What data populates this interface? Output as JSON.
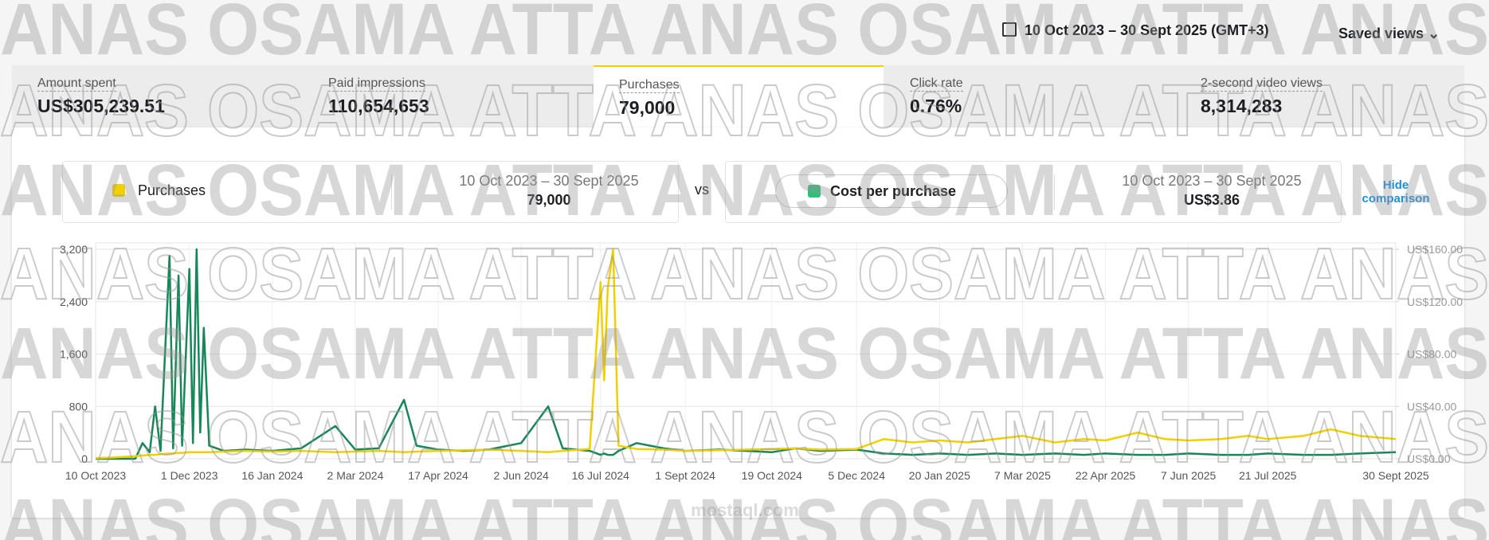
{
  "watermark": "ANAS OSAMA ATTA ANAS OSAMA ATTA ANAS",
  "site_watermark": "mostaql.com",
  "header": {
    "date_range": "10 Oct 2023 – 30 Sept 2025 (GMT+3)",
    "saved_views": "Saved views"
  },
  "metrics": [
    {
      "label": "Amount spent",
      "value": "US$305,239.51"
    },
    {
      "label": "Paid impressions",
      "value": "110,654,653"
    },
    {
      "label": "Purchases",
      "value": "79,000"
    },
    {
      "label": "Click rate",
      "value": "0.76%"
    },
    {
      "label": "2-second video views",
      "value": "8,314,283"
    }
  ],
  "comparison": {
    "left": {
      "metric": "Purchases",
      "period": "10 Oct 2023 – 30 Sept 2025",
      "total": "79,000"
    },
    "vs": "vs",
    "right": {
      "metric": "Cost per purchase",
      "period": "10 Oct 2023 – 30 Sept 2025",
      "total": "US$3.86"
    },
    "hide": "Hide comparison"
  },
  "chart_data": {
    "type": "line",
    "x": [
      "2023-10-10",
      "2023-10-20",
      "2023-11-01",
      "2023-11-05",
      "2023-11-09",
      "2023-11-12",
      "2023-11-15",
      "2023-11-20",
      "2023-11-22",
      "2023-11-25",
      "2023-11-27",
      "2023-12-01",
      "2023-12-03",
      "2023-12-05",
      "2023-12-07",
      "2023-12-09",
      "2023-12-12",
      "2023-12-20",
      "2024-01-01",
      "2024-01-16",
      "2024-02-01",
      "2024-02-20",
      "2024-03-02",
      "2024-03-15",
      "2024-03-29",
      "2024-04-05",
      "2024-04-17",
      "2024-05-01",
      "2024-05-15",
      "2024-06-02",
      "2024-06-17",
      "2024-06-25",
      "2024-07-10",
      "2024-07-16",
      "2024-07-18",
      "2024-07-20",
      "2024-07-23",
      "2024-07-26",
      "2024-08-05",
      "2024-08-20",
      "2024-09-01",
      "2024-09-20",
      "2024-10-05",
      "2024-10-19",
      "2024-11-01",
      "2024-11-15",
      "2024-12-05",
      "2024-12-20",
      "2025-01-05",
      "2025-01-20",
      "2025-02-05",
      "2025-02-20",
      "2025-03-07",
      "2025-03-25",
      "2025-04-10",
      "2025-04-22",
      "2025-05-10",
      "2025-05-25",
      "2025-06-07",
      "2025-06-25",
      "2025-07-10",
      "2025-07-21",
      "2025-08-10",
      "2025-08-25",
      "2025-09-10",
      "2025-09-30"
    ],
    "series": [
      {
        "name": "Purchases",
        "color": "#f2d000",
        "axis": "y",
        "values": [
          10,
          20,
          40,
          50,
          60,
          60,
          70,
          80,
          80,
          90,
          90,
          100,
          100,
          100,
          100,
          100,
          100,
          110,
          120,
          110,
          120,
          100,
          110,
          120,
          100,
          110,
          120,
          130,
          140,
          120,
          100,
          120,
          150,
          2700,
          1200,
          2600,
          3200,
          200,
          150,
          140,
          120,
          130,
          140,
          150,
          160,
          140,
          150,
          300,
          250,
          280,
          250,
          300,
          350,
          250,
          300,
          280,
          400,
          300,
          280,
          300,
          350,
          300,
          350,
          450,
          350,
          300
        ]
      },
      {
        "name": "Cost per purchase",
        "color": "#17875a",
        "axis": "y2",
        "values": [
          0,
          0,
          0,
          12,
          5,
          40,
          6,
          155,
          8,
          140,
          10,
          145,
          12,
          160,
          20,
          100,
          10,
          6,
          7,
          6,
          8,
          25,
          7,
          8,
          45,
          10,
          7,
          6,
          7,
          12,
          40,
          8,
          6,
          3,
          4,
          3,
          3,
          6,
          12,
          8,
          6,
          7,
          6,
          5,
          8,
          6,
          7,
          4,
          3,
          4,
          3,
          4,
          3,
          4,
          3,
          4,
          3,
          3,
          4,
          3,
          3,
          4,
          3,
          3,
          4,
          5
        ]
      }
    ],
    "xlim": [
      "2023-10-10",
      "2025-09-30"
    ],
    "xticks": [
      {
        "value": "2023-10-10",
        "label": "10 Oct 2023"
      },
      {
        "value": "2023-12-01",
        "label": "1 Dec 2023"
      },
      {
        "value": "2024-01-16",
        "label": "16 Jan 2024"
      },
      {
        "value": "2024-03-02",
        "label": "2 Mar 2024"
      },
      {
        "value": "2024-04-17",
        "label": "17 Apr 2024"
      },
      {
        "value": "2024-06-02",
        "label": "2 Jun 2024"
      },
      {
        "value": "2024-07-16",
        "label": "16 Jul 2024"
      },
      {
        "value": "2024-09-01",
        "label": "1 Sept 2024"
      },
      {
        "value": "2024-10-19",
        "label": "19 Oct 2024"
      },
      {
        "value": "2024-12-05",
        "label": "5 Dec 2024"
      },
      {
        "value": "2025-01-20",
        "label": "20 Jan 2025"
      },
      {
        "value": "2025-03-07",
        "label": "7 Mar 2025"
      },
      {
        "value": "2025-04-22",
        "label": "22 Apr 2025"
      },
      {
        "value": "2025-06-07",
        "label": "7 Jun 2025"
      },
      {
        "value": "2025-07-21",
        "label": "21 Jul 2025"
      },
      {
        "value": "2025-09-30",
        "label": "30 Sept 2025"
      }
    ],
    "ylim": [
      0,
      3200
    ],
    "yticks": [
      0,
      800,
      {
        "value": 1600,
        "label": "1,600"
      },
      {
        "value": 2400,
        "label": "2,400"
      },
      {
        "value": 3200,
        "label": "3,200"
      }
    ],
    "y2lim": [
      0,
      160
    ],
    "y2ticks": [
      {
        "value": 0,
        "label": "US$0.00"
      },
      {
        "value": 40,
        "label": "US$40.00"
      },
      {
        "value": 80,
        "label": "US$80.00"
      },
      {
        "value": 120,
        "label": "US$120.00"
      },
      {
        "value": 160,
        "label": "US$160.00"
      }
    ],
    "grid": true
  }
}
